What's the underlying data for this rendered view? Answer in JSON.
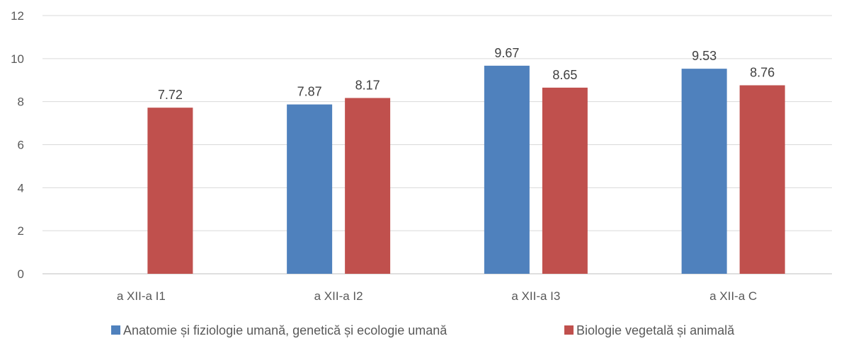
{
  "chart_data": {
    "type": "bar",
    "categories": [
      "a XII-a I1",
      "a XII-a I2",
      "a XII-a I3",
      "a XII-a C"
    ],
    "series": [
      {
        "name": "Anatomie și fiziologie umană, genetică și ecologie umană",
        "color": "#4F81BD",
        "values": [
          null,
          7.87,
          9.67,
          9.53
        ]
      },
      {
        "name": "Biologie vegetală și animală",
        "color": "#C0504D",
        "values": [
          7.72,
          8.17,
          8.65,
          8.76
        ]
      }
    ],
    "y_ticks": [
      0,
      2,
      4,
      6,
      8,
      10,
      12
    ],
    "ylim": [
      0,
      12
    ],
    "grid": true,
    "legend_position": "bottom",
    "data_labels": true
  }
}
